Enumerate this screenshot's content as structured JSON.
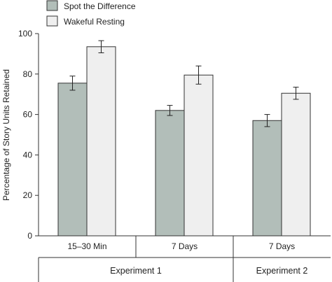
{
  "chart_data": {
    "type": "bar",
    "ylabel": "Percentage of Story Units Retained",
    "ylim": [
      0,
      100
    ],
    "yticks": [
      0,
      20,
      40,
      60,
      80,
      100
    ],
    "categories": [
      "15–30 Min",
      "7 Days",
      "7 Days"
    ],
    "groups": [
      {
        "label": "Experiment 1",
        "categories": [
          0,
          1
        ]
      },
      {
        "label": "Experiment 2",
        "categories": [
          2
        ]
      }
    ],
    "series": [
      {
        "name": "Spot the Difference",
        "color": "#b2beb9",
        "values": [
          75.5,
          62,
          57
        ],
        "errors": [
          3.5,
          2.5,
          3
        ]
      },
      {
        "name": "Wakeful Resting",
        "color": "#efefef",
        "values": [
          93.5,
          79.5,
          70.5
        ],
        "errors": [
          3,
          4.5,
          3
        ]
      }
    ],
    "legend": "top-left",
    "grid": false
  }
}
